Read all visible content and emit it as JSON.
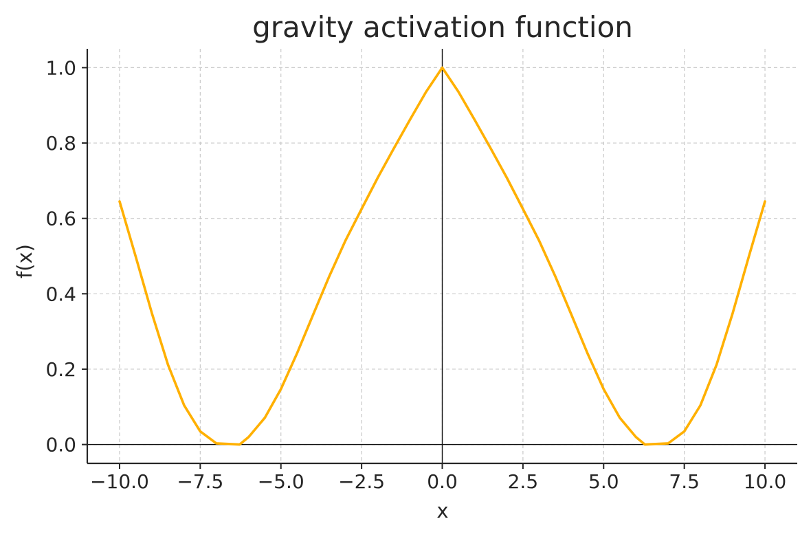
{
  "chart_data": {
    "type": "line",
    "title": "gravity activation function",
    "xlabel": "x",
    "ylabel": "f(x)",
    "xlim": [
      -11,
      11
    ],
    "ylim": [
      -0.05,
      1.05
    ],
    "x_ticks": [
      -10.0,
      -7.5,
      -5.0,
      -2.5,
      0.0,
      2.5,
      5.0,
      7.5,
      10.0
    ],
    "x_tick_labels": [
      "−10.0",
      "−7.5",
      "−5.0",
      "−2.5",
      "0.0",
      "2.5",
      "5.0",
      "7.5",
      "10.0"
    ],
    "y_ticks": [
      0.0,
      0.2,
      0.4,
      0.6,
      0.8,
      1.0
    ],
    "y_tick_labels": [
      "0.0",
      "0.2",
      "0.4",
      "0.6",
      "0.8",
      "1.0"
    ],
    "grid": true,
    "reference_lines": {
      "x": 0,
      "y": 0
    },
    "series": [
      {
        "color": "#FFB000",
        "x": [
          -10,
          -9.5,
          -9,
          -8.5,
          -8,
          -7.5,
          -7,
          -6.5,
          -6.28,
          -6,
          -5.5,
          -5,
          -4.5,
          -4,
          -3.5,
          -3,
          -2.5,
          -2,
          -1.5,
          -1,
          -0.5,
          0,
          0.5,
          1,
          1.5,
          2,
          2.5,
          3,
          3.5,
          4,
          4.5,
          5,
          5.5,
          6,
          6.28,
          6.5,
          7,
          7.5,
          8,
          8.5,
          9,
          9.5,
          10
        ],
        "y": [
          0.645,
          0.499,
          0.349,
          0.212,
          0.104,
          0.035,
          0.003,
          0.001,
          0.0,
          0.02,
          0.071,
          0.147,
          0.242,
          0.345,
          0.447,
          0.541,
          0.625,
          0.708,
          0.786,
          0.862,
          0.936,
          1.0,
          0.936,
          0.862,
          0.786,
          0.708,
          0.625,
          0.541,
          0.447,
          0.345,
          0.242,
          0.147,
          0.071,
          0.02,
          0.0,
          0.001,
          0.003,
          0.035,
          0.104,
          0.212,
          0.349,
          0.499,
          0.645
        ]
      }
    ]
  }
}
